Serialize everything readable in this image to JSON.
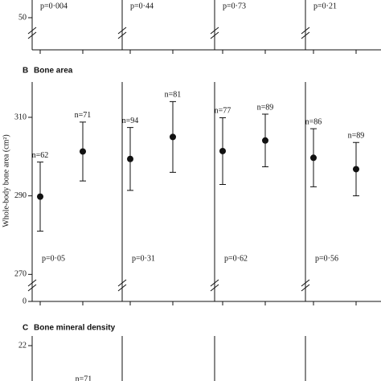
{
  "chart_data": [
    {
      "type": "panel-fragment",
      "yticks": [
        50
      ],
      "p_labels": [
        "p=0·004",
        "p=0·44",
        "p=0·73",
        "p=0·21"
      ]
    },
    {
      "type": "errorbar",
      "label": "B",
      "title": "Bone area",
      "ylabel": "Whole-body bone area (cm²)",
      "ylim": [
        267,
        319
      ],
      "yticks": [
        310,
        290,
        270
      ],
      "break_tick": 0,
      "panels": [
        {
          "values": [
            289.8,
            301.3
          ],
          "errors": [
            8.8,
            7.5
          ],
          "n_labels": [
            "n=62",
            "n=71"
          ],
          "p_label": "p=0·05"
        },
        {
          "values": [
            299.4,
            305.0
          ],
          "errors": [
            8,
            9
          ],
          "n_labels": [
            "n=94",
            "n=81"
          ],
          "p_label": "p=0·31"
        },
        {
          "values": [
            301.4,
            304.1
          ],
          "errors": [
            8.5,
            6.7
          ],
          "n_labels": [
            "n=77",
            "n=89"
          ],
          "p_label": "p=0·62"
        },
        {
          "values": [
            299.7,
            296.8
          ],
          "errors": [
            7.4,
            6.8
          ],
          "n_labels": [
            "n=86",
            "n=89"
          ],
          "p_label": "p=0·56"
        }
      ]
    },
    {
      "type": "panel-fragment",
      "label": "C",
      "title": "Bone mineral density",
      "yticks": [
        22
      ],
      "n_labels": [
        "n=71"
      ]
    }
  ]
}
